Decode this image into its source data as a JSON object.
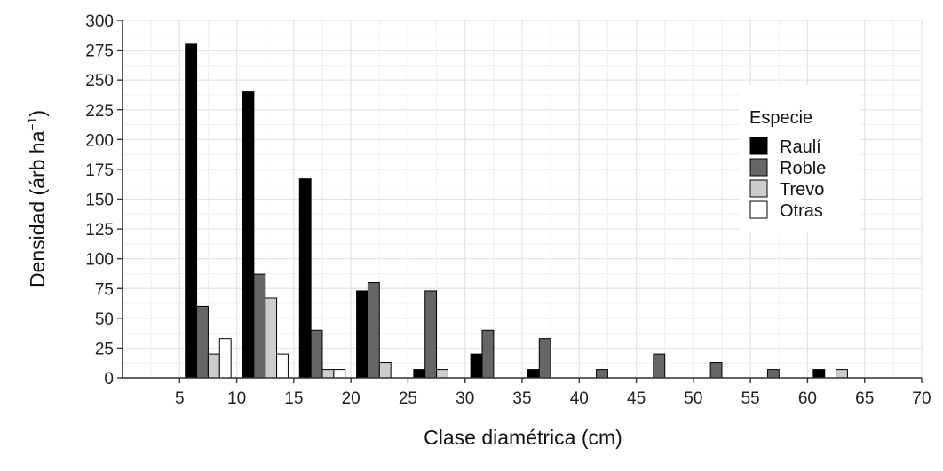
{
  "chart_data": {
    "type": "bar",
    "xlabel": "Clase diamétrica (cm)",
    "ylabel_main": "Densidad (árb ha",
    "ylabel_sup": "−1",
    "ylabel_close": ")",
    "xlim": [
      0,
      70
    ],
    "ylim": [
      0,
      300
    ],
    "x_ticks": [
      5,
      10,
      15,
      20,
      25,
      30,
      35,
      40,
      45,
      50,
      55,
      60,
      65,
      70
    ],
    "y_ticks": [
      0,
      25,
      50,
      75,
      100,
      125,
      150,
      175,
      200,
      225,
      250,
      275,
      300
    ],
    "grid": true,
    "legend_position": "right",
    "categories": [
      5,
      10,
      15,
      20,
      25,
      30,
      35,
      40,
      45,
      50,
      55,
      60
    ],
    "series": [
      {
        "name": "Raulí",
        "color": "#000000",
        "values": [
          280,
          240,
          167,
          73,
          7,
          20,
          7,
          0,
          0,
          0,
          0,
          7
        ]
      },
      {
        "name": "Roble",
        "color": "#666666",
        "values": [
          60,
          87,
          40,
          80,
          73,
          40,
          33,
          7,
          20,
          13,
          7,
          0
        ]
      },
      {
        "name": "Trevo",
        "color": "#cccccc",
        "values": [
          20,
          67,
          7,
          13,
          7,
          0,
          0,
          0,
          0,
          0,
          0,
          7
        ]
      },
      {
        "name": "Otras",
        "color": "#ffffff",
        "values": [
          33,
          20,
          7,
          0,
          0,
          0,
          0,
          0,
          0,
          0,
          0,
          0
        ]
      }
    ]
  },
  "legend": {
    "title": "Especie",
    "items": [
      "Raulí",
      "Roble",
      "Trevo",
      "Otras"
    ]
  }
}
